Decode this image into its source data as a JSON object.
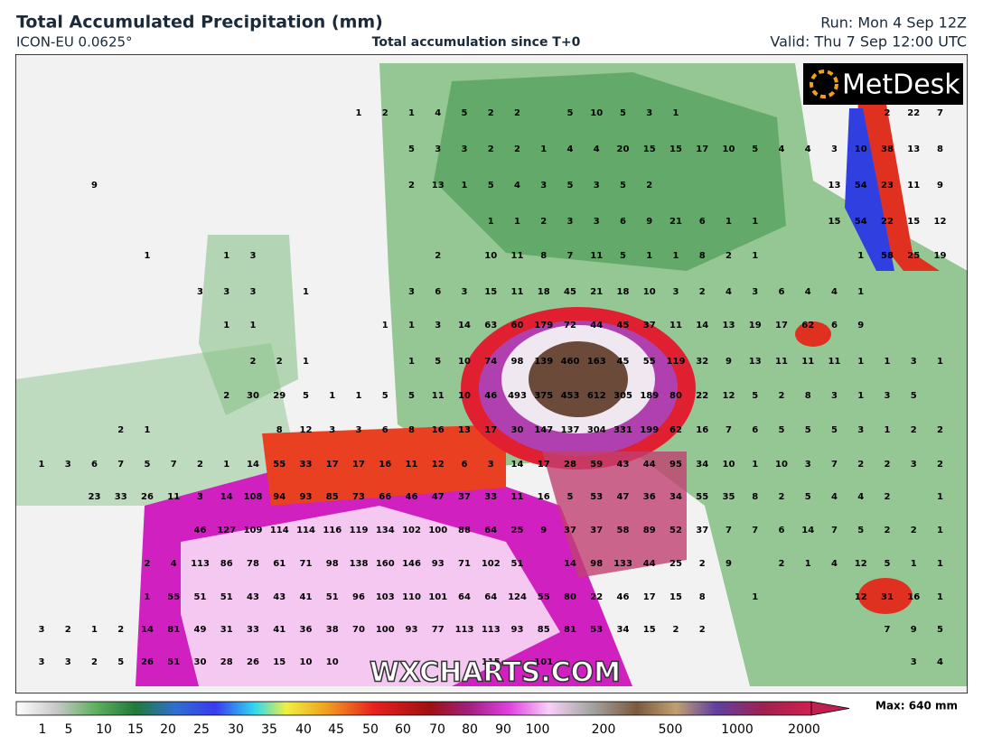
{
  "header": {
    "title": "Total Accumulated Precipitation (mm)",
    "model": "ICON-EU 0.0625°",
    "subtitle": "Total accumulation since T+0",
    "run": "Run: Mon 4 Sep 12Z",
    "valid": "Valid: Thu 7 Sep 12:00 UTC"
  },
  "logo": "MetDesk",
  "watermark": "WXCHARTS.COM",
  "map": {
    "grid": [
      [
        null,
        null,
        null,
        null,
        null,
        null,
        null,
        null,
        null,
        null,
        null,
        null,
        1,
        2,
        1,
        4,
        5,
        2,
        2,
        null,
        5,
        10,
        5,
        3,
        1,
        null,
        null,
        null,
        null,
        null,
        null,
        null,
        2,
        22,
        7
      ],
      [
        null,
        null,
        null,
        null,
        null,
        null,
        null,
        null,
        null,
        null,
        null,
        null,
        null,
        null,
        5,
        3,
        3,
        2,
        2,
        1,
        4,
        4,
        20,
        15,
        15,
        17,
        10,
        5,
        4,
        4,
        3,
        10,
        38,
        13,
        8
      ],
      [
        null,
        null,
        9,
        null,
        null,
        null,
        null,
        null,
        null,
        null,
        null,
        null,
        null,
        null,
        2,
        13,
        1,
        5,
        4,
        3,
        5,
        3,
        5,
        2,
        null,
        null,
        null,
        null,
        null,
        null,
        13,
        54,
        23,
        11,
        9
      ],
      [
        null,
        null,
        null,
        null,
        null,
        null,
        null,
        null,
        null,
        null,
        null,
        null,
        null,
        null,
        null,
        null,
        null,
        1,
        1,
        2,
        3,
        3,
        6,
        9,
        21,
        6,
        1,
        1,
        null,
        null,
        15,
        54,
        22,
        15,
        12
      ],
      [
        null,
        null,
        null,
        null,
        1,
        null,
        null,
        1,
        3,
        null,
        null,
        null,
        null,
        null,
        null,
        2,
        null,
        10,
        11,
        8,
        7,
        11,
        5,
        1,
        1,
        8,
        2,
        1,
        null,
        null,
        null,
        1,
        58,
        25,
        19
      ],
      [
        null,
        null,
        null,
        null,
        null,
        null,
        3,
        3,
        3,
        null,
        1,
        null,
        null,
        null,
        3,
        6,
        3,
        15,
        11,
        18,
        45,
        21,
        18,
        10,
        3,
        2,
        4,
        3,
        6,
        4,
        4,
        1,
        null,
        null,
        null
      ],
      [
        null,
        null,
        null,
        null,
        null,
        null,
        null,
        1,
        1,
        null,
        null,
        null,
        null,
        1,
        1,
        3,
        14,
        63,
        60,
        179,
        72,
        44,
        45,
        37,
        11,
        14,
        13,
        19,
        17,
        62,
        6,
        9,
        null,
        null,
        null
      ],
      [
        null,
        null,
        null,
        null,
        null,
        null,
        null,
        null,
        2,
        2,
        1,
        null,
        null,
        null,
        1,
        5,
        10,
        74,
        98,
        139,
        460,
        163,
        45,
        55,
        119,
        32,
        9,
        13,
        11,
        11,
        11,
        1,
        1,
        3,
        1
      ],
      [
        null,
        null,
        null,
        null,
        null,
        null,
        null,
        2,
        30,
        29,
        5,
        1,
        1,
        5,
        5,
        11,
        10,
        46,
        493,
        375,
        453,
        612,
        305,
        189,
        80,
        22,
        12,
        5,
        2,
        8,
        3,
        1,
        3,
        5,
        null
      ],
      [
        null,
        null,
        null,
        2,
        1,
        null,
        null,
        null,
        null,
        8,
        12,
        3,
        3,
        6,
        8,
        16,
        13,
        17,
        30,
        147,
        137,
        304,
        331,
        199,
        62,
        16,
        7,
        6,
        5,
        5,
        5,
        3,
        1,
        2,
        2
      ],
      [
        1,
        3,
        6,
        7,
        5,
        7,
        2,
        1,
        14,
        55,
        33,
        17,
        17,
        16,
        11,
        12,
        6,
        3,
        14,
        17,
        28,
        59,
        43,
        44,
        95,
        34,
        10,
        1,
        10,
        3,
        7,
        2,
        2,
        3,
        2
      ],
      [
        null,
        null,
        23,
        33,
        26,
        11,
        3,
        14,
        108,
        94,
        93,
        85,
        73,
        66,
        46,
        47,
        37,
        33,
        11,
        16,
        5,
        53,
        47,
        36,
        34,
        55,
        35,
        8,
        2,
        5,
        4,
        4,
        2,
        null,
        1
      ],
      [
        null,
        null,
        null,
        null,
        null,
        null,
        46,
        127,
        109,
        114,
        114,
        116,
        119,
        134,
        102,
        100,
        88,
        64,
        25,
        9,
        37,
        37,
        58,
        89,
        52,
        37,
        7,
        7,
        6,
        14,
        7,
        5,
        2,
        2,
        1
      ],
      [
        null,
        null,
        null,
        null,
        2,
        4,
        113,
        86,
        78,
        61,
        71,
        98,
        138,
        160,
        146,
        93,
        71,
        102,
        51,
        null,
        14,
        98,
        133,
        44,
        25,
        2,
        9,
        null,
        2,
        1,
        4,
        12,
        5,
        1,
        1
      ],
      [
        null,
        null,
        null,
        null,
        1,
        55,
        51,
        51,
        43,
        43,
        41,
        51,
        96,
        103,
        110,
        101,
        64,
        64,
        124,
        55,
        80,
        22,
        46,
        17,
        15,
        8,
        null,
        1,
        null,
        null,
        null,
        12,
        31,
        16,
        1
      ],
      [
        3,
        2,
        1,
        2,
        14,
        81,
        49,
        31,
        33,
        41,
        36,
        38,
        70,
        100,
        93,
        77,
        113,
        113,
        93,
        85,
        81,
        53,
        34,
        15,
        2,
        2,
        null,
        null,
        null,
        null,
        null,
        null,
        7,
        9,
        5
      ],
      [
        3,
        3,
        2,
        5,
        26,
        51,
        30,
        28,
        26,
        15,
        10,
        10,
        null,
        null,
        null,
        null,
        null,
        115,
        null,
        101,
        null,
        null,
        null,
        null,
        null,
        null,
        null,
        null,
        null,
        null,
        null,
        null,
        null,
        3,
        4
      ]
    ]
  },
  "colorbar": {
    "labels": [
      1,
      5,
      10,
      15,
      20,
      25,
      30,
      35,
      40,
      45,
      50,
      60,
      70,
      80,
      90,
      100,
      200,
      500,
      1000,
      2000
    ],
    "max": "Max: 640 mm"
  }
}
